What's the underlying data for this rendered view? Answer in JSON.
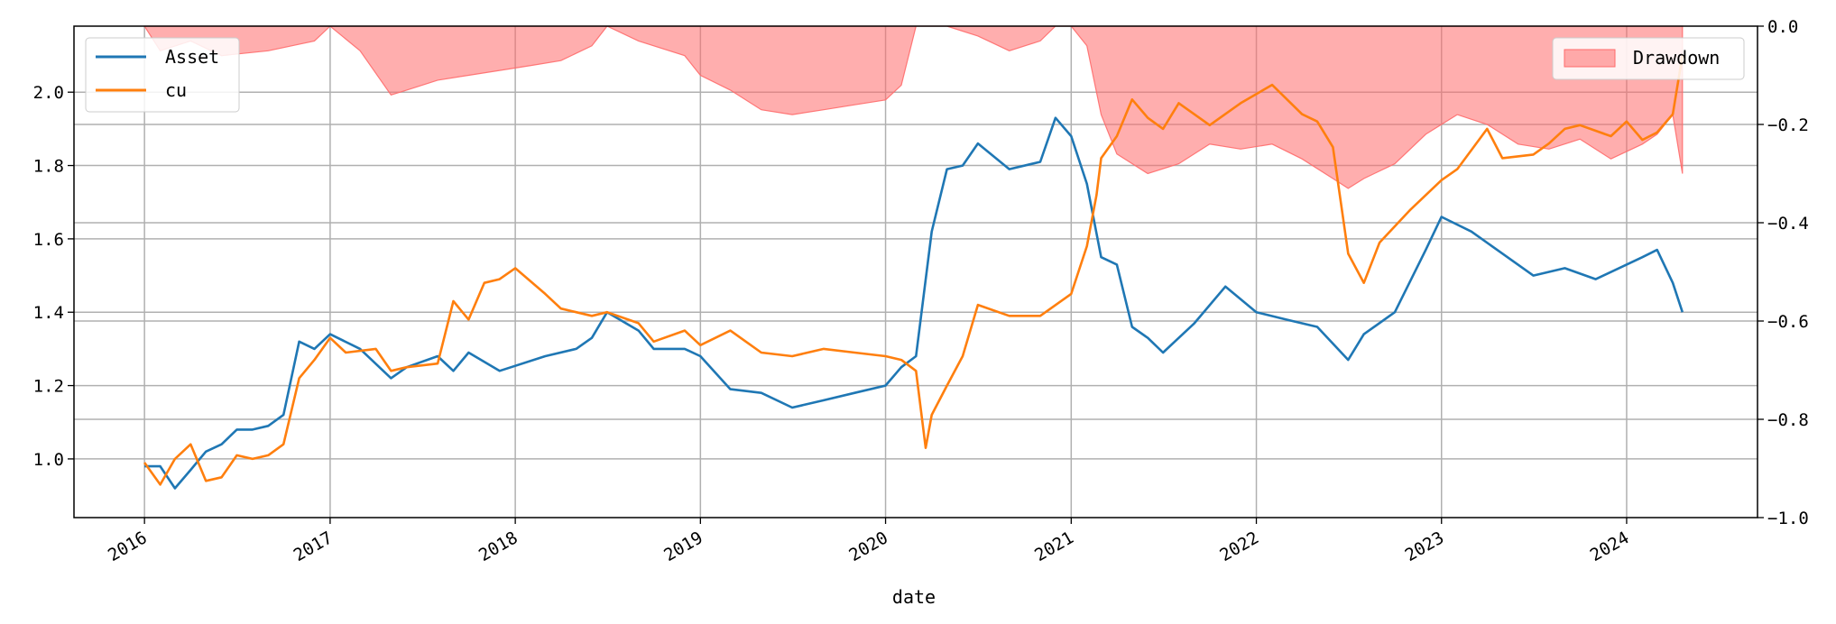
{
  "chart_data": {
    "type": "line",
    "xlabel": "date",
    "x_tick_labels": [
      "2016",
      "2017",
      "2018",
      "2019",
      "2020",
      "2021",
      "2022",
      "2023",
      "2024"
    ],
    "x_range": [
      "2015-08-15",
      "2024-09-15"
    ],
    "left_axis": {
      "ylim": [
        0.84,
        2.18
      ],
      "ticks": [
        1.0,
        1.2,
        1.4,
        1.6,
        1.8,
        2.0
      ],
      "tick_labels": [
        "1.0",
        "1.2",
        "1.4",
        "1.6",
        "1.8",
        "2.0"
      ]
    },
    "right_axis": {
      "ylim": [
        -1.0,
        0.0
      ],
      "ticks": [
        -1.0,
        -0.8,
        -0.6,
        -0.4,
        -0.2,
        0.0
      ],
      "tick_labels": [
        "−1.0",
        "−0.8",
        "−0.6",
        "−0.4",
        "−0.2",
        "0.0"
      ]
    },
    "grid": true,
    "legends": [
      {
        "placement": "top-left",
        "entries": [
          "Asset",
          "cu"
        ]
      },
      {
        "placement": "top-right",
        "entries": [
          "Drawdown"
        ]
      }
    ],
    "series": [
      {
        "name": "Asset",
        "axis": "left",
        "color": "#1f77b4",
        "x": [
          "2016-01-01",
          "2016-02-01",
          "2016-03-01",
          "2016-04-01",
          "2016-05-01",
          "2016-06-01",
          "2016-07-01",
          "2016-08-01",
          "2016-09-01",
          "2016-10-01",
          "2016-11-01",
          "2016-12-01",
          "2017-01-01",
          "2017-03-01",
          "2017-05-01",
          "2017-06-01",
          "2017-08-01",
          "2017-09-01",
          "2017-10-01",
          "2017-12-01",
          "2018-03-01",
          "2018-05-01",
          "2018-06-01",
          "2018-07-01",
          "2018-09-01",
          "2018-10-01",
          "2018-12-01",
          "2019-01-01",
          "2019-03-01",
          "2019-05-01",
          "2019-07-01",
          "2019-09-01",
          "2019-11-01",
          "2020-01-01",
          "2020-02-01",
          "2020-03-01",
          "2020-04-01",
          "2020-05-01",
          "2020-06-01",
          "2020-07-01",
          "2020-09-01",
          "2020-11-01",
          "2020-12-01",
          "2021-01-01",
          "2021-02-01",
          "2021-03-01",
          "2021-04-01",
          "2021-05-01",
          "2021-06-01",
          "2021-07-01",
          "2021-09-01",
          "2021-11-01",
          "2022-01-01",
          "2022-03-01",
          "2022-05-01",
          "2022-07-01",
          "2022-08-01",
          "2022-10-01",
          "2022-12-01",
          "2023-01-01",
          "2023-03-01",
          "2023-05-01",
          "2023-07-01",
          "2023-09-01",
          "2023-11-01",
          "2024-01-01",
          "2024-02-01",
          "2024-03-01",
          "2024-04-01",
          "2024-04-20"
        ],
        "values": [
          0.98,
          0.98,
          0.92,
          0.97,
          1.02,
          1.04,
          1.08,
          1.08,
          1.09,
          1.12,
          1.32,
          1.3,
          1.34,
          1.3,
          1.22,
          1.25,
          1.28,
          1.24,
          1.29,
          1.24,
          1.28,
          1.3,
          1.33,
          1.4,
          1.35,
          1.3,
          1.3,
          1.28,
          1.19,
          1.18,
          1.14,
          1.16,
          1.18,
          1.2,
          1.25,
          1.28,
          1.62,
          1.79,
          1.8,
          1.86,
          1.79,
          1.81,
          1.93,
          1.88,
          1.75,
          1.55,
          1.53,
          1.36,
          1.33,
          1.29,
          1.37,
          1.47,
          1.4,
          1.38,
          1.36,
          1.27,
          1.34,
          1.4,
          1.57,
          1.66,
          1.62,
          1.56,
          1.5,
          1.52,
          1.49,
          1.53,
          1.55,
          1.57,
          1.48,
          1.4
        ]
      },
      {
        "name": "cu",
        "axis": "left",
        "color": "#ff7f0e",
        "x": [
          "2016-01-01",
          "2016-02-01",
          "2016-03-01",
          "2016-04-01",
          "2016-05-01",
          "2016-06-01",
          "2016-07-01",
          "2016-08-01",
          "2016-09-01",
          "2016-10-01",
          "2016-11-01",
          "2016-12-01",
          "2017-01-01",
          "2017-02-01",
          "2017-04-01",
          "2017-05-01",
          "2017-06-01",
          "2017-08-01",
          "2017-09-01",
          "2017-10-01",
          "2017-11-01",
          "2017-12-01",
          "2018-01-01",
          "2018-03-01",
          "2018-04-01",
          "2018-05-01",
          "2018-06-01",
          "2018-07-01",
          "2018-09-01",
          "2018-10-01",
          "2018-12-01",
          "2019-01-01",
          "2019-03-01",
          "2019-05-01",
          "2019-07-01",
          "2019-09-01",
          "2019-11-01",
          "2020-01-01",
          "2020-02-01",
          "2020-03-01",
          "2020-03-20",
          "2020-04-01",
          "2020-05-01",
          "2020-06-01",
          "2020-07-01",
          "2020-09-01",
          "2020-11-01",
          "2021-01-01",
          "2021-02-01",
          "2021-02-20",
          "2021-03-01",
          "2021-04-01",
          "2021-05-01",
          "2021-06-01",
          "2021-07-01",
          "2021-08-01",
          "2021-10-01",
          "2021-12-01",
          "2022-02-01",
          "2022-04-01",
          "2022-05-01",
          "2022-06-01",
          "2022-07-01",
          "2022-08-01",
          "2022-09-01",
          "2022-11-01",
          "2023-01-01",
          "2023-02-01",
          "2023-04-01",
          "2023-05-01",
          "2023-07-01",
          "2023-08-01",
          "2023-09-01",
          "2023-10-01",
          "2023-12-01",
          "2024-01-01",
          "2024-02-01",
          "2024-03-01",
          "2024-04-01",
          "2024-04-20"
        ],
        "values": [
          0.99,
          0.93,
          1.0,
          1.04,
          0.94,
          0.95,
          1.01,
          1.0,
          1.01,
          1.04,
          1.22,
          1.27,
          1.33,
          1.29,
          1.3,
          1.24,
          1.25,
          1.26,
          1.43,
          1.38,
          1.48,
          1.49,
          1.52,
          1.45,
          1.41,
          1.4,
          1.39,
          1.4,
          1.37,
          1.32,
          1.35,
          1.31,
          1.35,
          1.29,
          1.28,
          1.3,
          1.29,
          1.28,
          1.27,
          1.24,
          1.03,
          1.12,
          1.2,
          1.28,
          1.42,
          1.39,
          1.39,
          1.45,
          1.58,
          1.72,
          1.82,
          1.88,
          1.98,
          1.93,
          1.9,
          1.97,
          1.91,
          1.97,
          2.02,
          1.94,
          1.92,
          1.85,
          1.56,
          1.48,
          1.59,
          1.68,
          1.76,
          1.79,
          1.9,
          1.82,
          1.83,
          1.86,
          1.9,
          1.91,
          1.88,
          1.92,
          1.87,
          1.89,
          1.94,
          2.1
        ]
      },
      {
        "name": "Drawdown",
        "axis": "right",
        "color": "#ff6b6b",
        "type": "area",
        "x": [
          "2016-01-01",
          "2016-02-01",
          "2016-04-01",
          "2016-06-01",
          "2016-09-01",
          "2016-12-01",
          "2017-01-01",
          "2017-03-01",
          "2017-05-01",
          "2017-06-01",
          "2017-08-01",
          "2017-10-01",
          "2017-12-01",
          "2018-02-01",
          "2018-04-01",
          "2018-06-01",
          "2018-07-01",
          "2018-09-01",
          "2018-12-01",
          "2019-01-01",
          "2019-03-01",
          "2019-05-01",
          "2019-07-01",
          "2019-09-01",
          "2019-11-01",
          "2020-01-01",
          "2020-02-01",
          "2020-03-01",
          "2020-05-01",
          "2020-07-01",
          "2020-09-01",
          "2020-11-01",
          "2020-12-01",
          "2021-01-01",
          "2021-02-01",
          "2021-03-01",
          "2021-04-01",
          "2021-06-01",
          "2021-08-01",
          "2021-10-01",
          "2021-12-01",
          "2022-02-01",
          "2022-04-01",
          "2022-06-01",
          "2022-07-01",
          "2022-08-01",
          "2022-10-01",
          "2022-12-01",
          "2023-02-01",
          "2023-04-01",
          "2023-06-01",
          "2023-08-01",
          "2023-10-01",
          "2023-12-01",
          "2024-02-01",
          "2024-03-01",
          "2024-04-01",
          "2024-04-20"
        ],
        "values": [
          0.0,
          -0.05,
          -0.03,
          -0.06,
          -0.05,
          -0.03,
          0.0,
          -0.05,
          -0.14,
          -0.13,
          -0.11,
          -0.1,
          -0.09,
          -0.08,
          -0.07,
          -0.04,
          0.0,
          -0.03,
          -0.06,
          -0.1,
          -0.13,
          -0.17,
          -0.18,
          -0.17,
          -0.16,
          -0.15,
          -0.12,
          0.0,
          0.0,
          -0.02,
          -0.05,
          -0.03,
          0.0,
          0.0,
          -0.04,
          -0.18,
          -0.26,
          -0.3,
          -0.28,
          -0.24,
          -0.25,
          -0.24,
          -0.27,
          -0.31,
          -0.33,
          -0.31,
          -0.28,
          -0.22,
          -0.18,
          -0.2,
          -0.24,
          -0.25,
          -0.23,
          -0.27,
          -0.24,
          -0.22,
          -0.18,
          -0.3
        ]
      }
    ]
  }
}
